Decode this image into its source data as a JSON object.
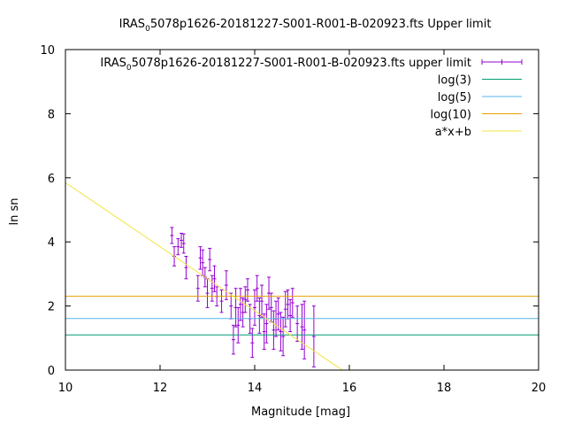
{
  "chart_data": {
    "type": "scatter",
    "title_prefix": "IRAS",
    "title_sub": "0",
    "title_suffix": "5078p1626-20181227-S001-R001-B-020923.fts Upper limit",
    "xlabel": "Magnitude [mag]",
    "ylabel": "ln sn",
    "xlim": [
      10,
      20
    ],
    "ylim": [
      0,
      10
    ],
    "xticks": [
      "10",
      "12",
      "14",
      "16",
      "18",
      "20"
    ],
    "yticks": [
      "0",
      "2",
      "4",
      "6",
      "8",
      "10"
    ],
    "legend_position": "top-right",
    "series": [
      {
        "name_prefix": "IRAS",
        "name_sub": "0",
        "name_suffix": "5078p1626-20181227-S001-R001-B-020923.fts upper limit",
        "type": "errorbar",
        "color": "#9400d3",
        "points": [
          {
            "x": 12.25,
            "y": 4.2,
            "err": 0.25
          },
          {
            "x": 12.3,
            "y": 3.55,
            "err": 0.3
          },
          {
            "x": 12.38,
            "y": 3.85,
            "err": 0.25
          },
          {
            "x": 12.45,
            "y": 4.05,
            "err": 0.22
          },
          {
            "x": 12.5,
            "y": 3.95,
            "err": 0.3
          },
          {
            "x": 12.55,
            "y": 3.2,
            "err": 0.35
          },
          {
            "x": 12.8,
            "y": 2.55,
            "err": 0.4
          },
          {
            "x": 12.85,
            "y": 3.5,
            "err": 0.35
          },
          {
            "x": 12.9,
            "y": 3.35,
            "err": 0.4
          },
          {
            "x": 12.95,
            "y": 2.9,
            "err": 0.3
          },
          {
            "x": 13.0,
            "y": 2.4,
            "err": 0.45
          },
          {
            "x": 13.05,
            "y": 3.45,
            "err": 0.35
          },
          {
            "x": 13.1,
            "y": 2.55,
            "err": 0.4
          },
          {
            "x": 13.15,
            "y": 2.85,
            "err": 0.4
          },
          {
            "x": 13.2,
            "y": 2.3,
            "err": 0.3
          },
          {
            "x": 13.3,
            "y": 2.15,
            "err": 0.35
          },
          {
            "x": 13.4,
            "y": 2.65,
            "err": 0.45
          },
          {
            "x": 13.5,
            "y": 2.0,
            "err": 0.4
          },
          {
            "x": 13.55,
            "y": 0.95,
            "err": 0.45
          },
          {
            "x": 13.6,
            "y": 1.95,
            "err": 0.6
          },
          {
            "x": 13.65,
            "y": 1.4,
            "err": 0.55
          },
          {
            "x": 13.7,
            "y": 2.05,
            "err": 0.5
          },
          {
            "x": 13.75,
            "y": 1.8,
            "err": 0.45
          },
          {
            "x": 13.8,
            "y": 2.2,
            "err": 0.4
          },
          {
            "x": 13.85,
            "y": 2.5,
            "err": 0.35
          },
          {
            "x": 13.9,
            "y": 1.6,
            "err": 0.45
          },
          {
            "x": 13.95,
            "y": 0.85,
            "err": 0.45
          },
          {
            "x": 14.0,
            "y": 1.95,
            "err": 0.55
          },
          {
            "x": 14.05,
            "y": 2.55,
            "err": 0.4
          },
          {
            "x": 14.1,
            "y": 1.7,
            "err": 0.55
          },
          {
            "x": 14.15,
            "y": 2.15,
            "err": 0.5
          },
          {
            "x": 14.2,
            "y": 1.2,
            "err": 0.55
          },
          {
            "x": 14.25,
            "y": 1.45,
            "err": 0.6
          },
          {
            "x": 14.3,
            "y": 2.4,
            "err": 0.5
          },
          {
            "x": 14.35,
            "y": 1.95,
            "err": 0.45
          },
          {
            "x": 14.4,
            "y": 1.25,
            "err": 0.6
          },
          {
            "x": 14.45,
            "y": 1.6,
            "err": 0.55
          },
          {
            "x": 14.5,
            "y": 1.75,
            "err": 0.5
          },
          {
            "x": 14.55,
            "y": 1.2,
            "err": 0.6
          },
          {
            "x": 14.6,
            "y": 1.05,
            "err": 0.6
          },
          {
            "x": 14.65,
            "y": 1.9,
            "err": 0.55
          },
          {
            "x": 14.7,
            "y": 2.05,
            "err": 0.45
          },
          {
            "x": 14.75,
            "y": 1.7,
            "err": 0.5
          },
          {
            "x": 14.8,
            "y": 2.1,
            "err": 0.45
          },
          {
            "x": 14.9,
            "y": 1.45,
            "err": 0.55
          },
          {
            "x": 15.0,
            "y": 1.35,
            "err": 0.7
          },
          {
            "x": 15.05,
            "y": 1.25,
            "err": 0.9
          },
          {
            "x": 15.25,
            "y": 1.05,
            "err": 0.95
          }
        ]
      },
      {
        "name": "log(3)",
        "type": "hline",
        "y": 1.0986,
        "color": "#009e73"
      },
      {
        "name": "log(5)",
        "type": "hline",
        "y": 1.6094,
        "color": "#56b4e9"
      },
      {
        "name": "log(10)",
        "type": "hline",
        "y": 2.3026,
        "color": "#e69f00"
      },
      {
        "name": "a*x+b",
        "type": "fit",
        "color": "#f0e442",
        "x": [
          10,
          15.85
        ],
        "y": [
          5.85,
          0
        ]
      }
    ]
  }
}
